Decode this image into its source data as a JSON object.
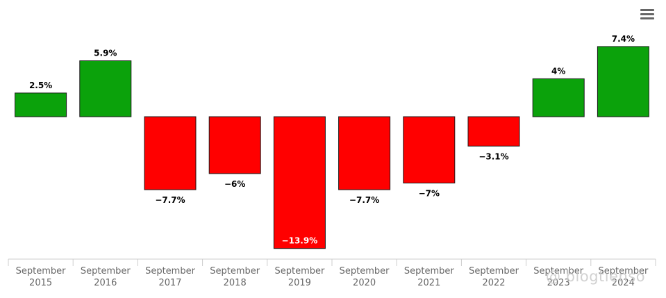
{
  "chart_data": {
    "type": "bar",
    "title": "",
    "xlabel": "",
    "ylabel": "",
    "categories": [
      [
        "September",
        "2015"
      ],
      [
        "September",
        "2016"
      ],
      [
        "September",
        "2017"
      ],
      [
        "September",
        "2018"
      ],
      [
        "September",
        "2019"
      ],
      [
        "September",
        "2020"
      ],
      [
        "September",
        "2021"
      ],
      [
        "September",
        "2022"
      ],
      [
        "September",
        "2023"
      ],
      [
        "September",
        "2024"
      ]
    ],
    "values": [
      2.5,
      5.9,
      -7.7,
      -6,
      -13.9,
      -7.7,
      -7,
      -3.1,
      4,
      7.4
    ],
    "data_labels": [
      "2.5%",
      "5.9%",
      "−7.7%",
      "−6%",
      "−13.9%",
      "−7.7%",
      "−7%",
      "−3.1%",
      "4%",
      "7.4%"
    ],
    "ylim": [
      -13.9,
      7.4
    ],
    "grid": false,
    "legend": "none",
    "colors": {
      "positive": "#0ba20b",
      "negative": "#ff0000",
      "bar_stroke": "#1a1a1a",
      "axis": "#cccccc",
      "label": "#666666"
    }
  },
  "toolbar": {
    "menu_icon": "hamburger-menu-icon"
  },
  "watermark": "@ blogtienso"
}
